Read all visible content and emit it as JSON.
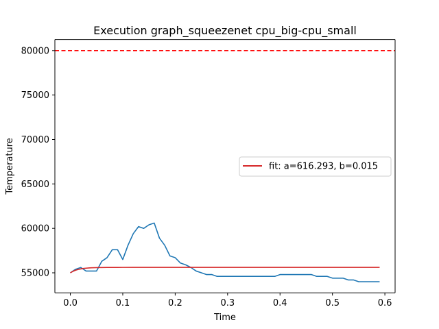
{
  "chart_data": {
    "type": "line",
    "title": "Execution graph_squeezenet cpu_big-cpu_small",
    "xlabel": "Time",
    "ylabel": "Temperature",
    "xlim": [
      -0.0295,
      0.6195
    ],
    "ylim": [
      52750,
      81250
    ],
    "xticks": [
      0.0,
      0.1,
      0.2,
      0.3,
      0.4,
      0.5,
      0.6
    ],
    "xtick_labels": [
      "0.0",
      "0.1",
      "0.2",
      "0.3",
      "0.4",
      "0.5",
      "0.6"
    ],
    "yticks": [
      55000,
      60000,
      65000,
      70000,
      75000,
      80000
    ],
    "ytick_labels": [
      "55000",
      "60000",
      "65000",
      "70000",
      "75000",
      "80000"
    ],
    "grid": false,
    "legend": {
      "position": "center-right",
      "entries": [
        "fit: a=616.293, b=0.015"
      ]
    },
    "series": [
      {
        "kind": "measured",
        "color": "#1f77b4",
        "x": [
          0.0,
          0.01,
          0.02,
          0.03,
          0.04,
          0.05,
          0.06,
          0.07,
          0.08,
          0.09,
          0.1,
          0.11,
          0.12,
          0.13,
          0.14,
          0.15,
          0.16,
          0.17,
          0.18,
          0.19,
          0.2,
          0.21,
          0.22,
          0.23,
          0.24,
          0.25,
          0.26,
          0.27,
          0.28,
          0.29,
          0.3,
          0.31,
          0.32,
          0.33,
          0.34,
          0.35,
          0.36,
          0.37,
          0.38,
          0.39,
          0.4,
          0.41,
          0.42,
          0.43,
          0.44,
          0.45,
          0.46,
          0.47,
          0.48,
          0.49,
          0.5,
          0.51,
          0.52,
          0.53,
          0.54,
          0.55,
          0.56,
          0.57,
          0.58,
          0.59
        ],
        "y": [
          55000,
          55400,
          55600,
          55200,
          55200,
          55200,
          56300,
          56700,
          57600,
          57600,
          56500,
          58100,
          59400,
          60200,
          60000,
          60400,
          60600,
          58900,
          58100,
          56900,
          56700,
          56100,
          55900,
          55600,
          55200,
          55000,
          54800,
          54800,
          54600,
          54600,
          54600,
          54600,
          54600,
          54600,
          54600,
          54600,
          54600,
          54600,
          54600,
          54600,
          54800,
          54800,
          54800,
          54800,
          54800,
          54800,
          54800,
          54600,
          54600,
          54600,
          54400,
          54400,
          54400,
          54200,
          54200,
          54000,
          54000,
          54000,
          54000,
          54000
        ]
      },
      {
        "kind": "fit",
        "name": "fit: a=616.293, b=0.015",
        "color": "#d62728",
        "x": [
          0.0,
          0.005,
          0.01,
          0.015,
          0.02,
          0.025,
          0.03,
          0.035,
          0.04,
          0.045,
          0.05,
          0.055,
          0.06,
          0.07,
          0.08,
          0.09,
          0.1,
          0.12,
          0.15,
          0.2,
          0.3,
          0.4,
          0.5,
          0.59
        ],
        "y": [
          55000,
          55168,
          55290,
          55378,
          55442,
          55488,
          55522,
          55546,
          55564,
          55576,
          55586,
          55592,
          55597,
          55603,
          55606,
          55608,
          55609,
          55610,
          55610,
          55610,
          55610,
          55610,
          55610,
          55610
        ]
      }
    ],
    "reference_line": {
      "y": 80000,
      "color": "#ff0000",
      "style": "dashed"
    }
  }
}
